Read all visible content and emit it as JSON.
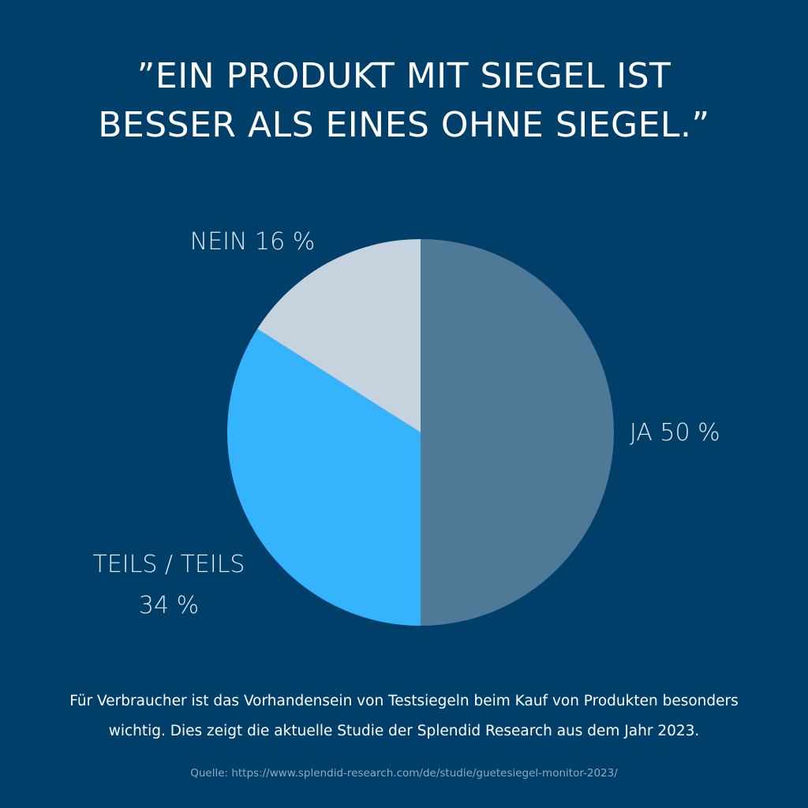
{
  "title": {
    "line1": "”EIN PRODUKT MIT SIEGEL IST",
    "line2": "BESSER ALS EINES OHNE SIEGEL.”"
  },
  "chart_data": {
    "type": "pie",
    "slices": [
      {
        "label": "JA",
        "value": 50,
        "label_lines": [
          "JA 50 %"
        ],
        "color": "#4f7a97"
      },
      {
        "label": "TEILS / TEILS",
        "value": 34,
        "label_lines": [
          "TEILS / TEILS",
          "34 %"
        ],
        "color": "#35b4fd"
      },
      {
        "label": "NEIN",
        "value": 16,
        "label_lines": [
          "NEIN 16 %"
        ],
        "color": "#c4d3dd"
      }
    ],
    "unit": "%",
    "legend": "none"
  },
  "description": {
    "line1": "Für Verbraucher ist das Vorhandensein von Testsiegeln beim Kauf von Produkten besonders",
    "line2": "wichtig. Dies zeigt die aktuelle Studie der Splendid Research aus dem Jahr 2023."
  },
  "source": "Quelle: https://www.splendid-research.com/de/studie/guetesiegel-monitor-2023/",
  "colors": {
    "background": "#003f69",
    "text": "#ffffff",
    "label_text": "#dfe8ef",
    "source_text": "#8fa9bd"
  }
}
